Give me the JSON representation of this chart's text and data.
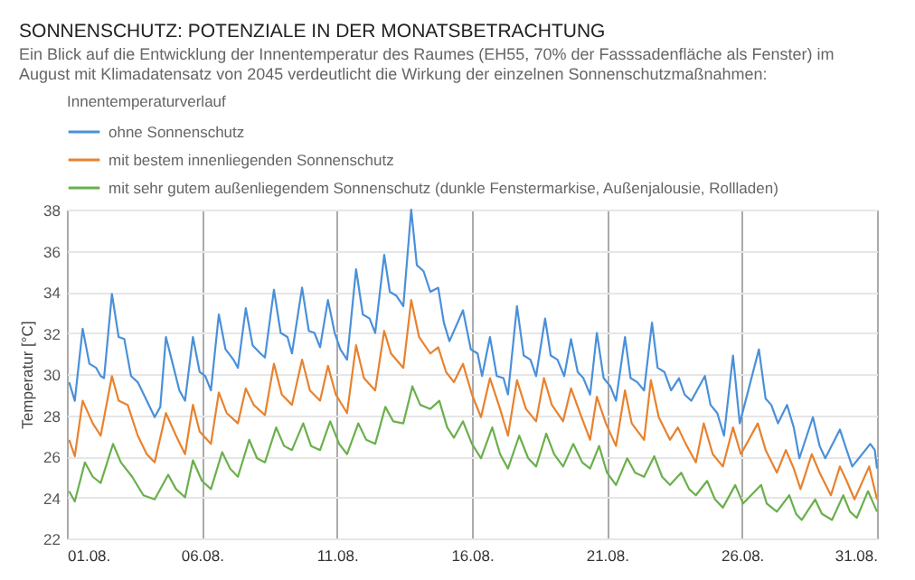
{
  "chart_data": {
    "type": "line",
    "title": "SONNENSCHUTZ: POTENZIALE IN DER MONATSBETRACHTUNG",
    "subtitle": "Ein Blick auf die Entwicklung der Innentemperatur des Raumes (EH55, 70% der Fasssadenfläche als Fenster) im August mit Klimadatensatz von 2045 verdeutlicht die Wirkung der einzelnen Sonnenschutzmaßnahmen:",
    "ylabel": "Temperatur [°C]",
    "legend_title": "Innentemperaturverlauf",
    "legend": "top left",
    "grid": true,
    "line_style": "solid",
    "xlim": [
      "--08-01",
      "--08-31"
    ],
    "xticks": [
      {
        "value": "--08-01",
        "label": "01.08."
      },
      {
        "value": "--08-06",
        "label": "06.08."
      },
      {
        "value": "--08-11",
        "label": "11.08."
      },
      {
        "value": "--08-16",
        "label": "16.08."
      },
      {
        "value": "--08-21",
        "label": "21.08."
      },
      {
        "value": "--08-26",
        "label": "26.08."
      },
      {
        "value": "--08-31",
        "label": "31.08."
      }
    ],
    "ylim": [
      22,
      38
    ],
    "yticks": [
      22,
      24,
      26,
      28,
      30,
      32,
      34,
      36,
      38
    ],
    "series": [
      {
        "name": "ohne Sonnenschutz",
        "color": "#4a90d9",
        "x": [
          "--08-01T02:00",
          "--08-01T07:00",
          "--08-01T14:00",
          "--08-01T20:00",
          "--08-02T02:00",
          "--08-02T06:00",
          "--08-02T09:00",
          "--08-02T16:00",
          "--08-02T22:00",
          "--08-03T03:00",
          "--08-03T09:00",
          "--08-03T15:00",
          "--08-03T23:00",
          "--08-04T06:00",
          "--08-04T11:00",
          "--08-04T16:00",
          "--08-04T22:00",
          "--08-05T04:00",
          "--08-05T09:00",
          "--08-05T16:00",
          "--08-05T22:00",
          "--08-06T03:00",
          "--08-06T08:00",
          "--08-06T15:00",
          "--08-06T21:00",
          "--08-07T04:00",
          "--08-07T08:00",
          "--08-07T15:00",
          "--08-07T21:00",
          "--08-08T04:00",
          "--08-08T08:00",
          "--08-08T16:00",
          "--08-08T22:00",
          "--08-09T04:00",
          "--08-09T08:00",
          "--08-09T17:00",
          "--08-09T23:00",
          "--08-10T04:00",
          "--08-10T09:00",
          "--08-10T16:00",
          "--08-10T22:00",
          "--08-11T03:00",
          "--08-11T09:00",
          "--08-11T17:00",
          "--08-11T23:00",
          "--08-12T05:00",
          "--08-12T10:00",
          "--08-12T18:00",
          "--08-12T23:00",
          "--08-13T05:00",
          "--08-13T11:00",
          "--08-13T18:00",
          "--08-13T23:00",
          "--08-14T05:00",
          "--08-14T11:00",
          "--08-14T18:00",
          "--08-14T23:00",
          "--08-15T04:00",
          "--08-15T16:00",
          "--08-15T23:00",
          "--08-16T05:00",
          "--08-16T09:00",
          "--08-16T16:00",
          "--08-16T22:00",
          "--08-17T04:00",
          "--08-17T08:00",
          "--08-17T16:00",
          "--08-17T22:00",
          "--08-18T04:00",
          "--08-18T09:00",
          "--08-18T17:00",
          "--08-18T22:00",
          "--08-19T04:00",
          "--08-19T10:00",
          "--08-19T16:00",
          "--08-19T22:00",
          "--08-20T03:00",
          "--08-20T09:00",
          "--08-20T15:00",
          "--08-20T21:00",
          "--08-21T03:00",
          "--08-21T08:00",
          "--08-21T16:00",
          "--08-21T21:00",
          "--08-22T03:00",
          "--08-22T09:00",
          "--08-22T16:00",
          "--08-22T21:00",
          "--08-23T03:00",
          "--08-23T09:00",
          "--08-23T16:00",
          "--08-23T21:00",
          "--08-24T03:00",
          "--08-24T15:00",
          "--08-24T20:00",
          "--08-25T02:00",
          "--08-25T08:00",
          "--08-25T16:00",
          "--08-25T22:00",
          "--08-26T15:00",
          "--08-26T21:00",
          "--08-27T02:00",
          "--08-27T08:00",
          "--08-27T16:00",
          "--08-27T22:00",
          "--08-28T03:00",
          "--08-28T15:00",
          "--08-28T21:00",
          "--08-29T02:00",
          "--08-29T15:00",
          "--08-29T21:00",
          "--08-30T02:00",
          "--08-30T18:00",
          "--08-30T22:00",
          "--08-31T00:00"
        ],
        "values": [
          29.6,
          28.7,
          32.2,
          30.5,
          30.3,
          29.9,
          29.8,
          33.9,
          31.8,
          31.7,
          29.9,
          29.6,
          28.7,
          27.9,
          28.4,
          31.8,
          30.5,
          29.2,
          28.7,
          31.8,
          30.1,
          29.9,
          29.2,
          32.9,
          31.2,
          30.7,
          30.3,
          33.2,
          31.4,
          31.0,
          30.8,
          34.1,
          32.0,
          31.8,
          31.0,
          34.2,
          32.1,
          32.0,
          31.3,
          33.6,
          32.0,
          31.2,
          30.7,
          35.1,
          32.9,
          32.7,
          32.0,
          35.8,
          34.0,
          33.8,
          33.3,
          38.0,
          35.3,
          35.0,
          34.0,
          34.2,
          32.5,
          31.6,
          33.1,
          31.2,
          31.0,
          29.9,
          31.8,
          29.9,
          29.8,
          29.0,
          33.3,
          30.9,
          30.7,
          29.9,
          32.7,
          30.9,
          30.7,
          29.9,
          31.7,
          30.1,
          29.8,
          29.0,
          32.0,
          29.8,
          29.4,
          28.7,
          31.8,
          29.8,
          29.6,
          29.2,
          32.5,
          30.3,
          30.1,
          29.2,
          29.8,
          29.0,
          28.7,
          29.9,
          28.5,
          28.1,
          27.0,
          30.9,
          27.6,
          31.2,
          28.8,
          28.5,
          27.6,
          28.5,
          27.4,
          25.9,
          27.9,
          26.5,
          25.9,
          27.3,
          26.3,
          25.5,
          26.6,
          26.3,
          25.4
        ]
      },
      {
        "name": "mit bestem innenliegenden Sonnenschutz",
        "color": "#e8822e",
        "x": [
          "--08-01T02:00",
          "--08-01T07:00",
          "--08-01T14:00",
          "--08-01T23:00",
          "--08-02T06:00",
          "--08-02T16:00",
          "--08-02T22:00",
          "--08-03T06:00",
          "--08-03T15:00",
          "--08-03T23:00",
          "--08-04T06:00",
          "--08-04T16:00",
          "--08-05T01:00",
          "--08-05T09:00",
          "--08-05T16:00",
          "--08-05T22:00",
          "--08-06T08:00",
          "--08-06T15:00",
          "--08-06T22:00",
          "--08-07T08:00",
          "--08-07T15:00",
          "--08-07T22:00",
          "--08-08T08:00",
          "--08-08T16:00",
          "--08-08T23:00",
          "--08-09T08:00",
          "--08-09T17:00",
          "--08-10T00:00",
          "--08-10T09:00",
          "--08-10T16:00",
          "--08-10T23:00",
          "--08-11T09:00",
          "--08-11T17:00",
          "--08-12T00:00",
          "--08-12T10:00",
          "--08-12T18:00",
          "--08-13T00:00",
          "--08-13T11:00",
          "--08-13T18:00",
          "--08-14T01:00",
          "--08-14T11:00",
          "--08-14T18:00",
          "--08-15T01:00",
          "--08-15T08:00",
          "--08-15T16:00",
          "--08-16T00:00",
          "--08-16T08:00",
          "--08-16T16:00",
          "--08-17T01:00",
          "--08-17T08:00",
          "--08-17T16:00",
          "--08-18T00:00",
          "--08-18T09:00",
          "--08-18T16:00",
          "--08-18T23:00",
          "--08-19T09:00",
          "--08-19T16:00",
          "--08-20T00:00",
          "--08-20T09:00",
          "--08-20T15:00",
          "--08-20T23:00",
          "--08-21T08:00",
          "--08-21T16:00",
          "--08-21T22:00",
          "--08-22T09:00",
          "--08-22T15:00",
          "--08-22T22:00",
          "--08-23T08:00",
          "--08-23T15:00",
          "--08-23T22:00",
          "--08-24T07:00",
          "--08-24T14:00",
          "--08-24T22:00",
          "--08-25T07:00",
          "--08-25T16:00",
          "--08-25T23:00",
          "--08-26T14:00",
          "--08-26T21:00",
          "--08-27T07:00",
          "--08-27T15:00",
          "--08-27T22:00",
          "--08-28T04:00",
          "--08-28T14:00",
          "--08-28T21:00",
          "--08-29T07:00",
          "--08-29T15:00",
          "--08-29T21:00",
          "--08-30T04:00",
          "--08-30T17:00",
          "--08-31T00:00"
        ],
        "values": [
          26.8,
          26.0,
          28.7,
          27.6,
          27.0,
          29.9,
          28.7,
          28.5,
          27.0,
          26.1,
          25.7,
          28.1,
          27.0,
          26.1,
          28.5,
          27.2,
          26.6,
          29.1,
          28.1,
          27.6,
          29.3,
          28.5,
          28.0,
          30.5,
          29.0,
          28.5,
          30.7,
          29.2,
          28.7,
          30.4,
          29.0,
          28.1,
          31.4,
          29.8,
          29.2,
          32.1,
          31.0,
          30.3,
          33.6,
          31.8,
          31.0,
          31.3,
          30.1,
          29.6,
          30.5,
          29.0,
          27.9,
          29.8,
          28.3,
          27.0,
          29.7,
          28.3,
          27.7,
          29.8,
          28.5,
          27.7,
          29.3,
          28.1,
          26.8,
          28.9,
          27.6,
          26.5,
          29.2,
          27.6,
          26.8,
          29.7,
          27.9,
          26.8,
          27.4,
          26.6,
          25.7,
          27.6,
          26.1,
          25.5,
          27.4,
          26.1,
          27.6,
          26.3,
          25.2,
          26.3,
          25.4,
          24.4,
          26.1,
          25.2,
          24.1,
          25.5,
          24.8,
          23.9,
          25.5,
          23.9
        ]
      },
      {
        "name": "mit sehr gutem außenliegendem Sonnenschutz (dunkle Fenstermarkise, Außenjalousie, Rollladen)",
        "color": "#6ab04c",
        "x": [
          "--08-01T02:00",
          "--08-01T07:00",
          "--08-01T16:00",
          "--08-01T23:00",
          "--08-02T06:00",
          "--08-02T17:00",
          "--08-03T00:00",
          "--08-03T10:00",
          "--08-03T20:00",
          "--08-04T06:00",
          "--08-04T18:00",
          "--08-05T01:00",
          "--08-05T09:00",
          "--08-05T16:00",
          "--08-06T00:00",
          "--08-06T08:00",
          "--08-06T18:00",
          "--08-07T01:00",
          "--08-07T08:00",
          "--08-07T18:00",
          "--08-08T01:00",
          "--08-08T08:00",
          "--08-08T18:00",
          "--08-09T01:00",
          "--08-09T08:00",
          "--08-09T18:00",
          "--08-10T01:00",
          "--08-10T09:00",
          "--08-10T18:00",
          "--08-11T02:00",
          "--08-11T09:00",
          "--08-11T19:00",
          "--08-12T02:00",
          "--08-12T10:00",
          "--08-12T19:00",
          "--08-13T02:00",
          "--08-13T11:00",
          "--08-13T19:00",
          "--08-14T02:00",
          "--08-14T11:00",
          "--08-14T19:00",
          "--08-15T02:00",
          "--08-15T08:00",
          "--08-15T16:00",
          "--08-16T00:00",
          "--08-16T08:00",
          "--08-16T18:00",
          "--08-17T01:00",
          "--08-17T08:00",
          "--08-17T18:00",
          "--08-18T02:00",
          "--08-18T09:00",
          "--08-18T18:00",
          "--08-19T01:00",
          "--08-19T09:00",
          "--08-19T18:00",
          "--08-20T02:00",
          "--08-20T09:00",
          "--08-20T17:00",
          "--08-21T00:00",
          "--08-21T08:00",
          "--08-21T18:00",
          "--08-22T01:00",
          "--08-22T09:00",
          "--08-22T18:00",
          "--08-23T01:00",
          "--08-23T08:00",
          "--08-23T18:00",
          "--08-24T01:00",
          "--08-24T07:00",
          "--08-24T17:00",
          "--08-25T00:00",
          "--08-25T07:00",
          "--08-25T18:00",
          "--08-26T01:00",
          "--08-26T17:00",
          "--08-26T22:00",
          "--08-27T07:00",
          "--08-27T18:00",
          "--08-28T00:00",
          "--08-28T05:00",
          "--08-28T17:00",
          "--08-28T23:00",
          "--08-29T08:00",
          "--08-29T18:00",
          "--08-30T00:00",
          "--08-30T06:00",
          "--08-30T16:00",
          "--08-31T00:00"
        ],
        "values": [
          24.3,
          23.8,
          25.7,
          25.0,
          24.7,
          26.6,
          25.7,
          25.0,
          24.1,
          23.9,
          25.1,
          24.4,
          24.0,
          25.8,
          24.8,
          24.4,
          26.2,
          25.4,
          25.0,
          26.8,
          25.9,
          25.7,
          27.4,
          26.5,
          26.3,
          27.6,
          26.5,
          26.3,
          27.7,
          26.6,
          26.1,
          27.6,
          26.8,
          26.6,
          28.4,
          27.7,
          27.6,
          29.4,
          28.5,
          28.3,
          28.7,
          27.4,
          26.9,
          27.7,
          26.6,
          25.9,
          27.4,
          26.1,
          25.4,
          27.0,
          25.9,
          25.5,
          27.1,
          26.1,
          25.5,
          26.6,
          25.7,
          25.4,
          26.5,
          25.2,
          24.6,
          25.9,
          25.2,
          25.0,
          26.0,
          25.0,
          24.6,
          25.2,
          24.4,
          24.1,
          24.8,
          23.9,
          23.5,
          24.6,
          23.7,
          24.6,
          23.7,
          23.3,
          24.1,
          23.2,
          22.9,
          23.9,
          23.2,
          22.9,
          24.1,
          23.3,
          23.0,
          24.3,
          23.3
        ]
      }
    ]
  }
}
